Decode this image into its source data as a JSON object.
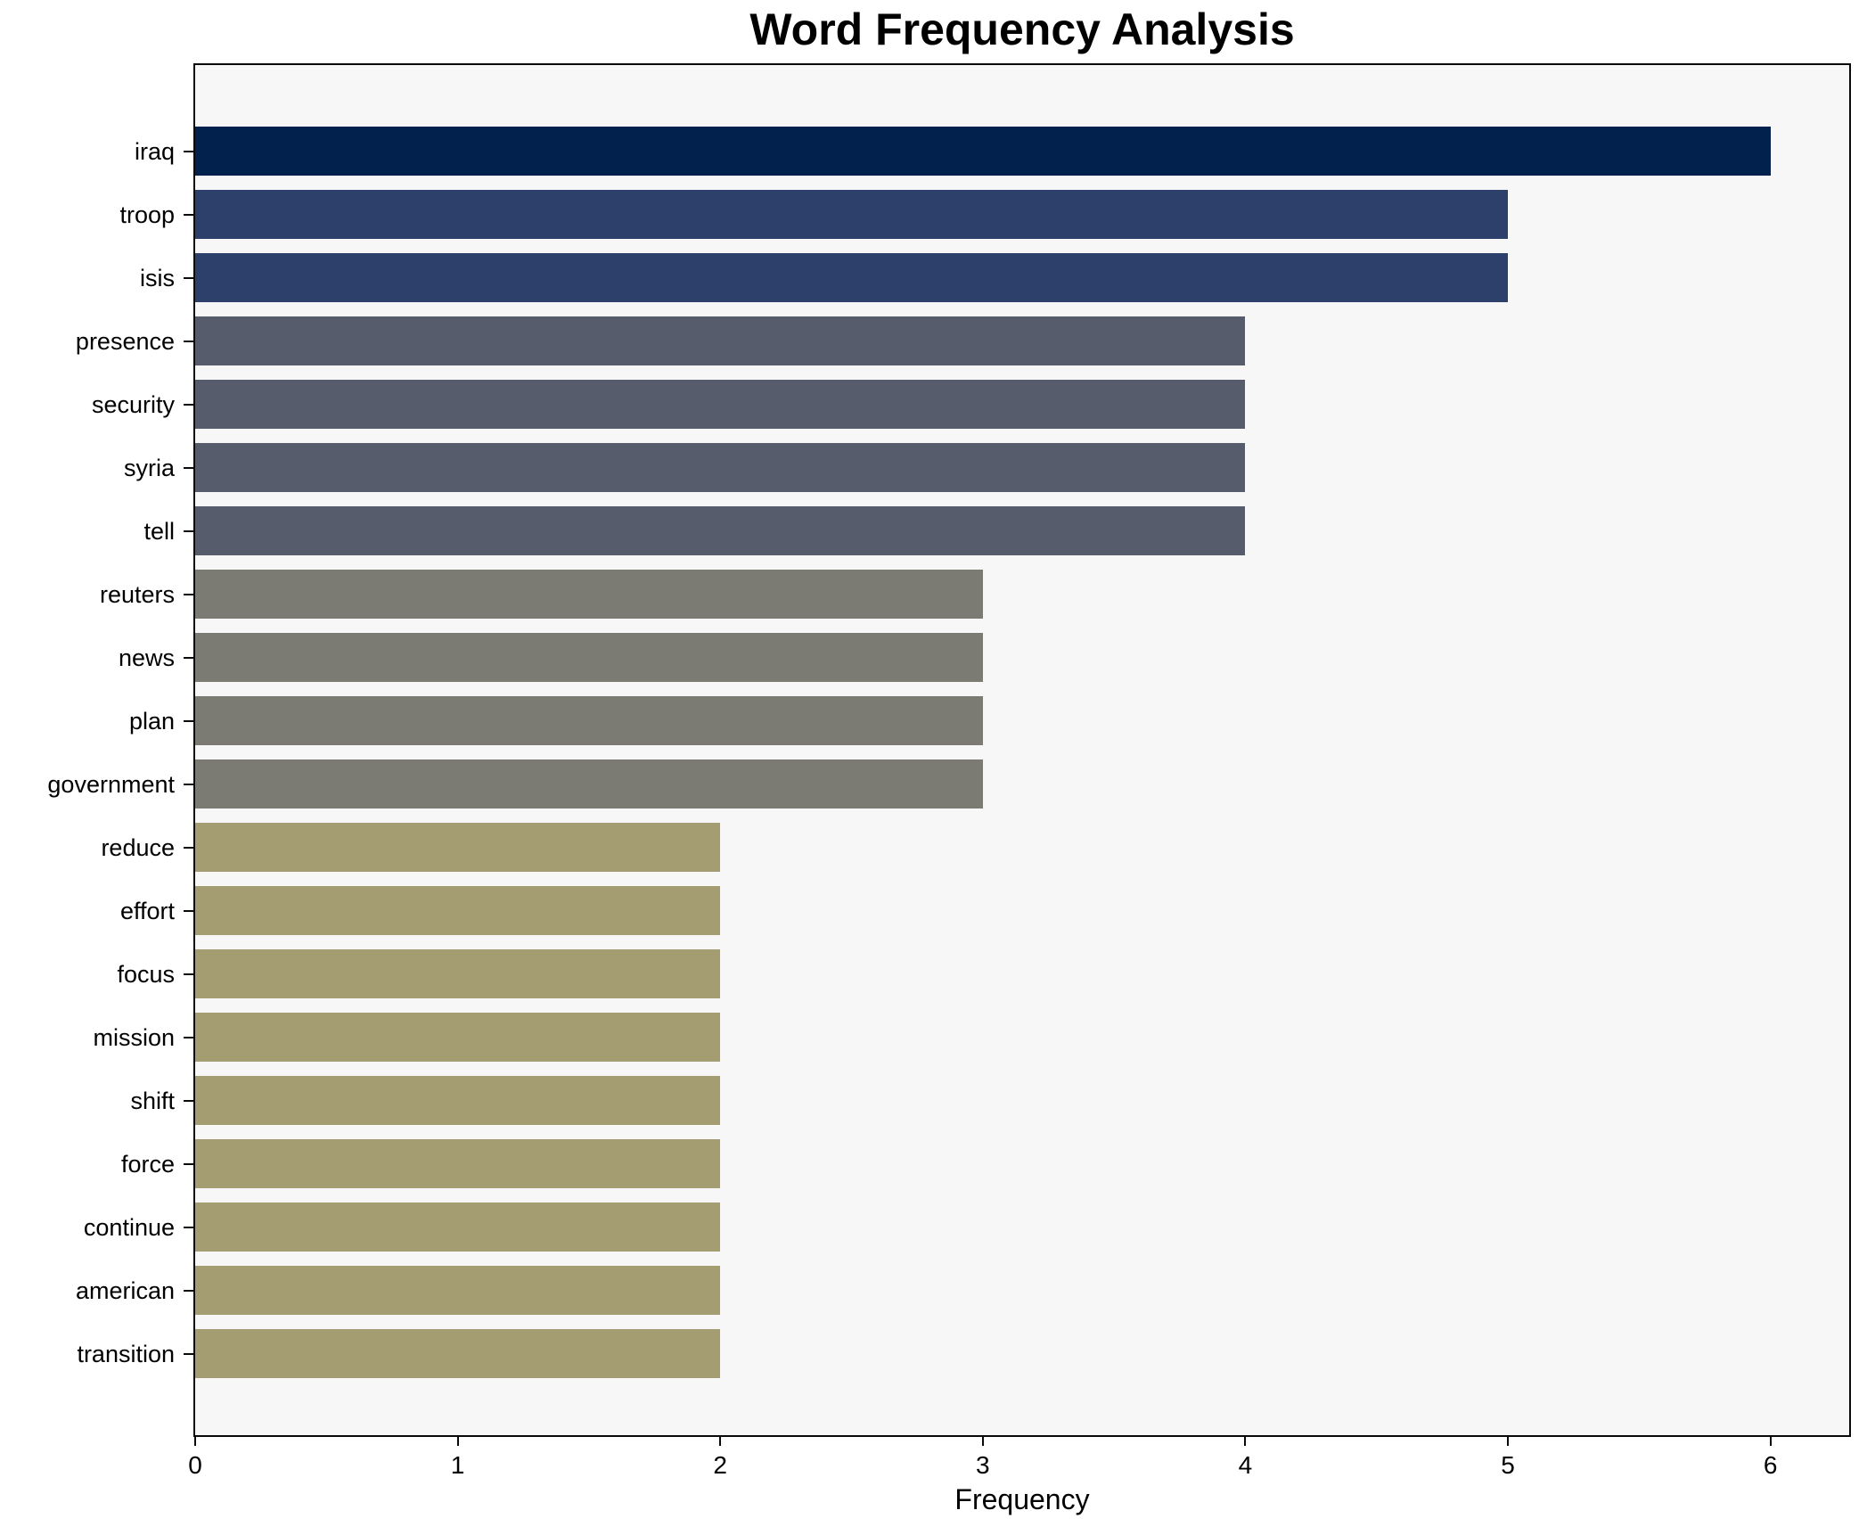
{
  "chart_data": {
    "type": "bar",
    "orientation": "horizontal",
    "title": "Word Frequency Analysis",
    "xlabel": "Frequency",
    "ylabel": "",
    "grid": false,
    "legend_position": "none",
    "plot_background": "#f7f7f8",
    "figure_background": "#ffffff",
    "spine_color": "#0a0a0a",
    "xlim": [
      0,
      6.3
    ],
    "xticks": [
      "0",
      "1",
      "2",
      "3",
      "4",
      "5",
      "6"
    ],
    "xtick_values": [
      0,
      1,
      2,
      3,
      4,
      5,
      6
    ],
    "categories": [
      "iraq",
      "troop",
      "isis",
      "presence",
      "security",
      "syria",
      "tell",
      "reuters",
      "news",
      "plan",
      "government",
      "reduce",
      "effort",
      "focus",
      "mission",
      "shift",
      "force",
      "continue",
      "american",
      "transition"
    ],
    "values": [
      6,
      5,
      5,
      4,
      4,
      4,
      4,
      3,
      3,
      3,
      3,
      2,
      2,
      2,
      2,
      2,
      2,
      2,
      2,
      2
    ],
    "bar_colors": [
      "#02224d",
      "#2d3f6b",
      "#2d3f6b",
      "#575c6d",
      "#575c6d",
      "#575c6d",
      "#575c6d",
      "#7c7b73",
      "#7c7b73",
      "#7c7b73",
      "#7c7b73",
      "#a49d72",
      "#a49d72",
      "#a49d72",
      "#a49d72",
      "#a49d72",
      "#a49d72",
      "#a49d72",
      "#a49d72",
      "#a49d72"
    ]
  }
}
